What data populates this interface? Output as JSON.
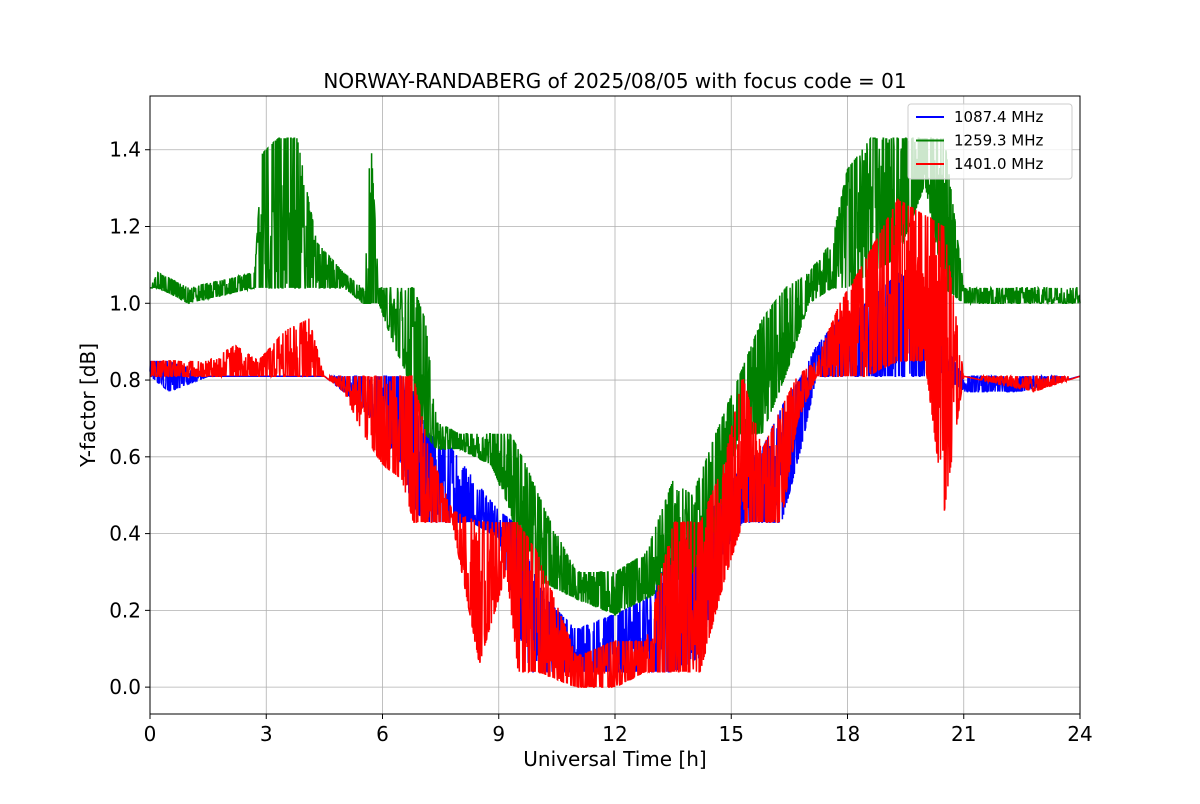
{
  "chart_data": {
    "type": "line",
    "title": "NORWAY-RANDABERG of 2025/08/05 with focus code = 01",
    "xlabel": "Universal Time [h]",
    "ylabel": "Y-factor [dB]",
    "xlim": [
      0,
      24
    ],
    "ylim": [
      -0.07,
      1.54
    ],
    "xticks": [
      0,
      3,
      6,
      9,
      12,
      15,
      18,
      21,
      24
    ],
    "xtick_labels": [
      "0",
      "3",
      "6",
      "9",
      "12",
      "15",
      "18",
      "21",
      "24"
    ],
    "yticks": [
      0.0,
      0.2,
      0.4,
      0.6,
      0.8,
      1.0,
      1.2,
      1.4
    ],
    "ytick_labels": [
      "0.0",
      "0.2",
      "0.4",
      "0.6",
      "0.8",
      "1.0",
      "1.2",
      "1.4"
    ],
    "grid": true,
    "legend_position": "top-right",
    "series": [
      {
        "name": "1087.4 MHz",
        "color": "#0000ff",
        "envelope": [
          {
            "x": 0,
            "min": 0.81,
            "max": 0.85
          },
          {
            "x": 0.5,
            "min": 0.77,
            "max": 0.85
          },
          {
            "x": 1.5,
            "min": 0.81,
            "max": 0.81
          },
          {
            "x": 4.5,
            "min": 0.81,
            "max": 0.81
          },
          {
            "x": 5.0,
            "min": 0.77,
            "max": 0.81
          },
          {
            "x": 5.5,
            "min": 0.73,
            "max": 0.81
          },
          {
            "x": 6.0,
            "min": 0.66,
            "max": 0.81
          },
          {
            "x": 6.5,
            "min": 0.58,
            "max": 0.81
          },
          {
            "x": 6.8,
            "min": 0.46,
            "max": 0.77
          },
          {
            "x": 7.2,
            "min": 0.43,
            "max": 0.66
          },
          {
            "x": 7.8,
            "min": 0.43,
            "max": 0.62
          },
          {
            "x": 8.3,
            "min": 0.43,
            "max": 0.55
          },
          {
            "x": 9.0,
            "min": 0.39,
            "max": 0.46
          },
          {
            "x": 9.4,
            "min": 0.2,
            "max": 0.43
          },
          {
            "x": 9.7,
            "min": 0.04,
            "max": 0.35
          },
          {
            "x": 10.2,
            "min": 0.04,
            "max": 0.23
          },
          {
            "x": 11.0,
            "min": 0.04,
            "max": 0.15
          },
          {
            "x": 12.0,
            "min": 0.04,
            "max": 0.19
          },
          {
            "x": 12.8,
            "min": 0.04,
            "max": 0.23
          },
          {
            "x": 13.5,
            "min": 0.04,
            "max": 0.35
          },
          {
            "x": 14.2,
            "min": 0.08,
            "max": 0.43
          },
          {
            "x": 14.8,
            "min": 0.35,
            "max": 0.5
          },
          {
            "x": 15.3,
            "min": 0.43,
            "max": 0.58
          },
          {
            "x": 15.8,
            "min": 0.43,
            "max": 0.62
          },
          {
            "x": 16.3,
            "min": 0.43,
            "max": 0.73
          },
          {
            "x": 16.8,
            "min": 0.62,
            "max": 0.81
          },
          {
            "x": 17.2,
            "min": 0.81,
            "max": 0.89
          },
          {
            "x": 17.8,
            "min": 0.81,
            "max": 0.96
          },
          {
            "x": 18.5,
            "min": 0.81,
            "max": 1.0
          },
          {
            "x": 19.3,
            "min": 0.81,
            "max": 1.08
          },
          {
            "x": 20.0,
            "min": 0.81,
            "max": 1.04
          },
          {
            "x": 20.5,
            "min": 0.81,
            "max": 0.89
          },
          {
            "x": 21.0,
            "min": 0.77,
            "max": 0.81
          },
          {
            "x": 22.5,
            "min": 0.77,
            "max": 0.81
          },
          {
            "x": 24,
            "min": 0.81,
            "max": 0.81
          }
        ]
      },
      {
        "name": "1259.3 MHz",
        "color": "#008000",
        "envelope": [
          {
            "x": 0,
            "min": 1.04,
            "max": 1.04
          },
          {
            "x": 0.2,
            "min": 1.04,
            "max": 1.08
          },
          {
            "x": 1.0,
            "min": 1.0,
            "max": 1.04
          },
          {
            "x": 2.7,
            "min": 1.04,
            "max": 1.08
          },
          {
            "x": 2.9,
            "min": 1.04,
            "max": 1.39
          },
          {
            "x": 3.3,
            "min": 1.04,
            "max": 1.43
          },
          {
            "x": 3.8,
            "min": 1.04,
            "max": 1.43
          },
          {
            "x": 4.3,
            "min": 1.04,
            "max": 1.16
          },
          {
            "x": 5.0,
            "min": 1.04,
            "max": 1.08
          },
          {
            "x": 5.5,
            "min": 1.0,
            "max": 1.04
          },
          {
            "x": 5.7,
            "min": 1.0,
            "max": 1.43
          },
          {
            "x": 5.9,
            "min": 1.0,
            "max": 1.04
          },
          {
            "x": 6.3,
            "min": 0.89,
            "max": 1.04
          },
          {
            "x": 6.8,
            "min": 0.77,
            "max": 1.04
          },
          {
            "x": 7.1,
            "min": 0.66,
            "max": 0.96
          },
          {
            "x": 7.4,
            "min": 0.62,
            "max": 0.69
          },
          {
            "x": 8.0,
            "min": 0.62,
            "max": 0.66
          },
          {
            "x": 8.8,
            "min": 0.58,
            "max": 0.66
          },
          {
            "x": 9.3,
            "min": 0.46,
            "max": 0.66
          },
          {
            "x": 9.7,
            "min": 0.27,
            "max": 0.58
          },
          {
            "x": 10.2,
            "min": 0.27,
            "max": 0.46
          },
          {
            "x": 11.0,
            "min": 0.23,
            "max": 0.3
          },
          {
            "x": 12.0,
            "min": 0.19,
            "max": 0.3
          },
          {
            "x": 12.8,
            "min": 0.23,
            "max": 0.35
          },
          {
            "x": 13.5,
            "min": 0.27,
            "max": 0.54
          },
          {
            "x": 14.0,
            "min": 0.3,
            "max": 0.5
          },
          {
            "x": 14.6,
            "min": 0.39,
            "max": 0.66
          },
          {
            "x": 15.2,
            "min": 0.66,
            "max": 0.81
          },
          {
            "x": 15.8,
            "min": 0.66,
            "max": 0.96
          },
          {
            "x": 16.4,
            "min": 0.81,
            "max": 1.04
          },
          {
            "x": 17.0,
            "min": 1.0,
            "max": 1.08
          },
          {
            "x": 17.6,
            "min": 1.04,
            "max": 1.16
          },
          {
            "x": 18.0,
            "min": 1.04,
            "max": 1.35
          },
          {
            "x": 18.6,
            "min": 1.08,
            "max": 1.43
          },
          {
            "x": 19.3,
            "min": 1.12,
            "max": 1.43
          },
          {
            "x": 20.0,
            "min": 1.31,
            "max": 1.43
          },
          {
            "x": 20.5,
            "min": 1.04,
            "max": 1.43
          },
          {
            "x": 21.0,
            "min": 1.0,
            "max": 1.04
          },
          {
            "x": 24,
            "min": 1.0,
            "max": 1.04
          }
        ]
      },
      {
        "name": "1401.0 MHz",
        "color": "#ff0000",
        "envelope": [
          {
            "x": 0,
            "min": 0.81,
            "max": 0.85
          },
          {
            "x": 1.5,
            "min": 0.81,
            "max": 0.85
          },
          {
            "x": 2.2,
            "min": 0.81,
            "max": 0.89
          },
          {
            "x": 2.8,
            "min": 0.81,
            "max": 0.85
          },
          {
            "x": 3.5,
            "min": 0.81,
            "max": 0.93
          },
          {
            "x": 4.1,
            "min": 0.81,
            "max": 0.96
          },
          {
            "x": 4.5,
            "min": 0.81,
            "max": 0.81
          },
          {
            "x": 5.0,
            "min": 0.77,
            "max": 0.81
          },
          {
            "x": 5.5,
            "min": 0.66,
            "max": 0.81
          },
          {
            "x": 6.0,
            "min": 0.58,
            "max": 0.81
          },
          {
            "x": 6.5,
            "min": 0.54,
            "max": 0.81
          },
          {
            "x": 6.8,
            "min": 0.43,
            "max": 0.81
          },
          {
            "x": 7.2,
            "min": 0.43,
            "max": 0.62
          },
          {
            "x": 7.8,
            "min": 0.43,
            "max": 0.46
          },
          {
            "x": 8.5,
            "min": 0.06,
            "max": 0.43
          },
          {
            "x": 9.2,
            "min": 0.3,
            "max": 0.43
          },
          {
            "x": 9.5,
            "min": 0.04,
            "max": 0.43
          },
          {
            "x": 10.0,
            "min": 0.04,
            "max": 0.35
          },
          {
            "x": 11.0,
            "min": 0.0,
            "max": 0.08
          },
          {
            "x": 12.0,
            "min": 0.0,
            "max": 0.12
          },
          {
            "x": 12.8,
            "min": 0.04,
            "max": 0.12
          },
          {
            "x": 13.5,
            "min": 0.04,
            "max": 0.43
          },
          {
            "x": 14.2,
            "min": 0.04,
            "max": 0.43
          },
          {
            "x": 14.8,
            "min": 0.27,
            "max": 0.58
          },
          {
            "x": 15.3,
            "min": 0.43,
            "max": 0.81
          },
          {
            "x": 15.8,
            "min": 0.43,
            "max": 0.62
          },
          {
            "x": 16.3,
            "min": 0.43,
            "max": 0.73
          },
          {
            "x": 16.7,
            "min": 0.69,
            "max": 0.81
          },
          {
            "x": 17.2,
            "min": 0.81,
            "max": 0.85
          },
          {
            "x": 17.8,
            "min": 0.81,
            "max": 1.0
          },
          {
            "x": 18.5,
            "min": 0.81,
            "max": 1.12
          },
          {
            "x": 19.3,
            "min": 0.85,
            "max": 1.27
          },
          {
            "x": 20.0,
            "min": 0.85,
            "max": 1.23
          },
          {
            "x": 20.5,
            "min": 0.46,
            "max": 1.2
          },
          {
            "x": 21.0,
            "min": 0.81,
            "max": 0.81
          },
          {
            "x": 22.8,
            "min": 0.77,
            "max": 0.81
          },
          {
            "x": 24,
            "min": 0.81,
            "max": 0.81
          }
        ]
      }
    ]
  }
}
